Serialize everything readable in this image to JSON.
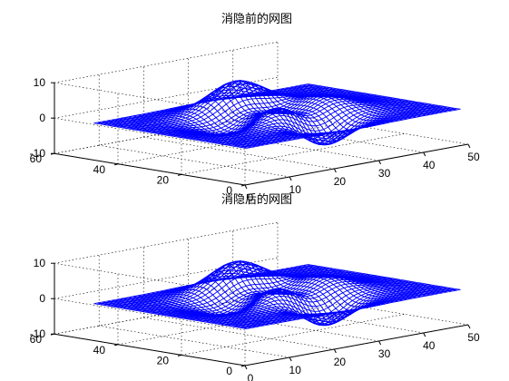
{
  "chart_data": [
    {
      "type": "surface-mesh",
      "title": "消隐前的网图",
      "hidden_line_removal": false,
      "x_ticks": [
        "0",
        "10",
        "20",
        "30",
        "40",
        "50"
      ],
      "y_ticks": [
        "0",
        "20",
        "40",
        "60"
      ],
      "z_ticks": [
        "-10",
        "0",
        "10"
      ],
      "xlim": [
        0,
        50
      ],
      "ylim": [
        0,
        60
      ],
      "zlim": [
        -10,
        10
      ],
      "grid_size": [
        49,
        49
      ],
      "grid": true,
      "mesh_color": "#0000ff"
    },
    {
      "type": "surface-mesh",
      "title": "消隐后的网图",
      "hidden_line_removal": true,
      "x_ticks": [
        "0",
        "10",
        "20",
        "30",
        "40",
        "50"
      ],
      "y_ticks": [
        "0",
        "20",
        "40",
        "60"
      ],
      "z_ticks": [
        "-10",
        "0",
        "10"
      ],
      "xlim": [
        0,
        50
      ],
      "ylim": [
        0,
        60
      ],
      "zlim": [
        -10,
        10
      ],
      "grid_size": [
        49,
        49
      ],
      "grid": true,
      "mesh_color": "#0000ff"
    }
  ]
}
